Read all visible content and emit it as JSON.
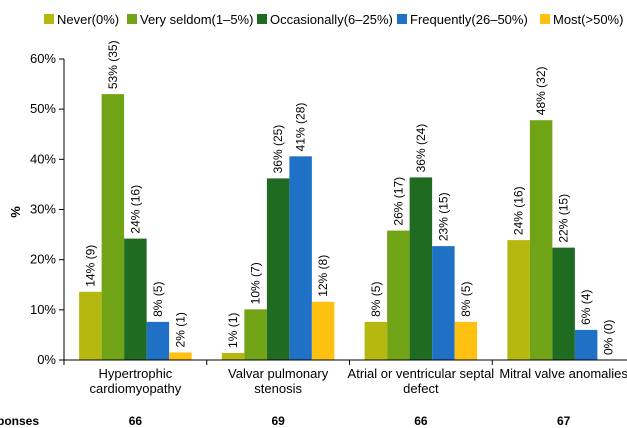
{
  "chart_data": {
    "type": "bar",
    "ylabel": "%",
    "ylim": [
      0,
      60
    ],
    "yticks": [
      "0%",
      "10%",
      "20%",
      "30%",
      "40%",
      "50%",
      "60%"
    ],
    "grid": false,
    "legend_position": "top",
    "categories": [
      [
        "Hypertrophic",
        "cardiomyopathy"
      ],
      [
        "Valvar pulmonary",
        "stenosis"
      ],
      [
        "Atrial or ventricular septal",
        "defect"
      ],
      [
        "Mitral valve anomalies"
      ]
    ],
    "series": [
      {
        "name": "Never(0%)",
        "color": "#b5b80f",
        "values": [
          13.6,
          1.4,
          7.6,
          23.9
        ],
        "labels": [
          "14% (9)",
          "1% (1)",
          "8% (5)",
          "24% (16)"
        ]
      },
      {
        "name": "Very seldom(1–5%)",
        "color": "#70a416",
        "values": [
          53.0,
          10.1,
          25.8,
          47.8
        ],
        "labels": [
          "53% (35)",
          "10% (7)",
          "26% (17)",
          "48% (32)"
        ]
      },
      {
        "name": "Occasionally(6–25%)",
        "color": "#1f6b21",
        "values": [
          24.2,
          36.2,
          36.4,
          22.4
        ],
        "labels": [
          "24% (16)",
          "36% (25)",
          "36% (24)",
          "22% (15)"
        ]
      },
      {
        "name": "Frequently(26–50%)",
        "color": "#1f71c6",
        "values": [
          7.6,
          40.6,
          22.7,
          6.0
        ],
        "labels": [
          "8% (5)",
          "41% (28)",
          "23% (15)",
          "6% (4)"
        ]
      },
      {
        "name": "Most(>50%)",
        "color": "#fec10f",
        "values": [
          1.5,
          11.6,
          7.6,
          0.0
        ],
        "labels": [
          "2% (1)",
          "12% (8)",
          "8% (5)",
          "0% (0)"
        ]
      }
    ],
    "responses_label": "Responses",
    "responses": [
      "66",
      "69",
      "66",
      "67"
    ]
  }
}
